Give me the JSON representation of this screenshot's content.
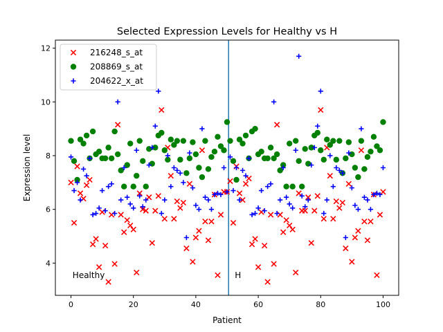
{
  "chart_data": {
    "type": "scatter",
    "title": "Selected Expression Levels for Healthy vs H",
    "xlabel": "Patient",
    "ylabel": "Expression level",
    "xlim": [
      -5,
      105
    ],
    "ylim": [
      2.8,
      12.3
    ],
    "xticks": [
      0,
      20,
      40,
      60,
      80,
      100
    ],
    "yticks": [
      4,
      6,
      8,
      10,
      12
    ],
    "legend_position": "upper-left",
    "divider_x": 50.5,
    "divider_color": "#1f77b4",
    "annotations": [
      {
        "text": "Healthy",
        "x": 0.5,
        "y": 3.55
      },
      {
        "text": "H",
        "x": 52.5,
        "y": 3.55
      }
    ],
    "series": [
      {
        "name": "216248_s_at",
        "marker": "x",
        "color": "#ff0000",
        "points": [
          [
            0,
            7.0
          ],
          [
            1,
            5.5
          ],
          [
            2,
            7.6
          ],
          [
            3,
            6.6
          ],
          [
            4,
            6.4
          ],
          [
            5,
            6.9
          ],
          [
            6,
            7.1
          ],
          [
            7,
            4.7
          ],
          [
            8,
            4.9
          ],
          [
            9,
            3.85
          ],
          [
            10,
            5.9
          ],
          [
            11,
            4.65
          ],
          [
            12,
            3.3
          ],
          [
            13,
            5.8
          ],
          [
            14,
            3.97
          ],
          [
            15,
            9.15
          ],
          [
            16,
            5.8
          ],
          [
            17,
            5.15
          ],
          [
            18,
            5.6
          ],
          [
            19,
            5.4
          ],
          [
            20,
            5.25
          ],
          [
            21,
            3.65
          ],
          [
            22,
            6.6
          ],
          [
            23,
            6.0
          ],
          [
            24,
            5.95
          ],
          [
            25,
            6.45
          ],
          [
            26,
            4.75
          ],
          [
            27,
            5.95
          ],
          [
            28,
            6.5
          ],
          [
            29,
            9.7
          ],
          [
            30,
            5.65
          ],
          [
            31,
            8.3
          ],
          [
            32,
            7.25
          ],
          [
            33,
            5.65
          ],
          [
            34,
            6.3
          ],
          [
            35,
            6.05
          ],
          [
            36,
            6.25
          ],
          [
            37,
            4.55
          ],
          [
            38,
            6.95
          ],
          [
            39,
            4.05
          ],
          [
            40,
            4.95
          ],
          [
            41,
            5.2
          ],
          [
            42,
            8.2
          ],
          [
            43,
            5.55
          ],
          [
            44,
            4.85
          ],
          [
            45,
            5.55
          ],
          [
            46,
            6.55
          ],
          [
            47,
            3.55
          ],
          [
            48,
            5.8
          ],
          [
            49,
            6.65
          ],
          [
            50,
            6.65
          ],
          [
            51,
            7.05
          ],
          [
            52,
            5.5
          ],
          [
            53,
            7.6
          ],
          [
            54,
            6.6
          ],
          [
            55,
            6.35
          ],
          [
            56,
            6.95
          ],
          [
            57,
            7.15
          ],
          [
            58,
            4.7
          ],
          [
            59,
            4.9
          ],
          [
            60,
            3.85
          ],
          [
            61,
            5.9
          ],
          [
            62,
            4.65
          ],
          [
            63,
            3.3
          ],
          [
            64,
            5.8
          ],
          [
            65,
            3.97
          ],
          [
            66,
            9.15
          ],
          [
            67,
            5.8
          ],
          [
            68,
            5.15
          ],
          [
            69,
            5.6
          ],
          [
            70,
            5.4
          ],
          [
            71,
            5.25
          ],
          [
            72,
            3.65
          ],
          [
            73,
            6.6
          ],
          [
            74,
            5.95
          ],
          [
            75,
            5.95
          ],
          [
            76,
            6.45
          ],
          [
            77,
            4.75
          ],
          [
            78,
            5.95
          ],
          [
            79,
            6.5
          ],
          [
            80,
            9.7
          ],
          [
            81,
            5.65
          ],
          [
            82,
            8.3
          ],
          [
            83,
            7.25
          ],
          [
            84,
            5.65
          ],
          [
            85,
            6.3
          ],
          [
            86,
            6.05
          ],
          [
            87,
            6.25
          ],
          [
            88,
            4.55
          ],
          [
            89,
            6.95
          ],
          [
            90,
            4.05
          ],
          [
            91,
            4.95
          ],
          [
            92,
            5.2
          ],
          [
            93,
            8.2
          ],
          [
            94,
            5.55
          ],
          [
            95,
            4.85
          ],
          [
            96,
            5.55
          ],
          [
            97,
            6.55
          ],
          [
            98,
            3.55
          ],
          [
            99,
            5.8
          ],
          [
            100,
            6.65
          ]
        ]
      },
      {
        "name": "208869_s_at",
        "marker": "circle",
        "color": "#008000",
        "points": [
          [
            0,
            8.55
          ],
          [
            1,
            7.8
          ],
          [
            2,
            7.1
          ],
          [
            3,
            8.6
          ],
          [
            4,
            8.45
          ],
          [
            5,
            8.75
          ],
          [
            6,
            7.9
          ],
          [
            7,
            8.9
          ],
          [
            8,
            8.05
          ],
          [
            9,
            8.15
          ],
          [
            10,
            7.9
          ],
          [
            11,
            7.9
          ],
          [
            12,
            8.3
          ],
          [
            13,
            7.9
          ],
          [
            14,
            8.9
          ],
          [
            15,
            8.05
          ],
          [
            16,
            7.45
          ],
          [
            17,
            6.85
          ],
          [
            18,
            7.65
          ],
          [
            19,
            8.45
          ],
          [
            20,
            6.85
          ],
          [
            21,
            7.25
          ],
          [
            22,
            8.55
          ],
          [
            23,
            7.8
          ],
          [
            24,
            6.85
          ],
          [
            25,
            8.25
          ],
          [
            26,
            7.7
          ],
          [
            27,
            8.3
          ],
          [
            28,
            8.75
          ],
          [
            29,
            8.85
          ],
          [
            30,
            8.2
          ],
          [
            31,
            7.85
          ],
          [
            32,
            8.6
          ],
          [
            33,
            8.4
          ],
          [
            34,
            8.55
          ],
          [
            35,
            7.85
          ],
          [
            36,
            8.55
          ],
          [
            37,
            7.35
          ],
          [
            38,
            7.9
          ],
          [
            39,
            8.5
          ],
          [
            40,
            8.05
          ],
          [
            41,
            7.55
          ],
          [
            42,
            7.2
          ],
          [
            43,
            8.55
          ],
          [
            44,
            7.5
          ],
          [
            45,
            7.95
          ],
          [
            46,
            8.15
          ],
          [
            47,
            8.7
          ],
          [
            48,
            8.35
          ],
          [
            49,
            8.2
          ],
          [
            50,
            9.25
          ],
          [
            51,
            8.55
          ],
          [
            52,
            7.8
          ],
          [
            53,
            7.1
          ],
          [
            54,
            8.6
          ],
          [
            55,
            8.45
          ],
          [
            56,
            8.75
          ],
          [
            57,
            7.9
          ],
          [
            58,
            8.9
          ],
          [
            59,
            9.0
          ],
          [
            60,
            8.05
          ],
          [
            61,
            8.15
          ],
          [
            62,
            7.9
          ],
          [
            63,
            7.9
          ],
          [
            64,
            8.3
          ],
          [
            65,
            7.9
          ],
          [
            66,
            8.05
          ],
          [
            67,
            7.45
          ],
          [
            68,
            7.65
          ],
          [
            69,
            6.85
          ],
          [
            70,
            8.45
          ],
          [
            71,
            6.85
          ],
          [
            72,
            8.55
          ],
          [
            73,
            7.8
          ],
          [
            74,
            6.85
          ],
          [
            75,
            8.25
          ],
          [
            76,
            7.7
          ],
          [
            77,
            8.3
          ],
          [
            78,
            8.75
          ],
          [
            79,
            8.85
          ],
          [
            80,
            8.2
          ],
          [
            81,
            7.85
          ],
          [
            82,
            8.6
          ],
          [
            83,
            8.4
          ],
          [
            84,
            8.55
          ],
          [
            85,
            7.85
          ],
          [
            86,
            8.55
          ],
          [
            87,
            7.35
          ],
          [
            88,
            7.9
          ],
          [
            89,
            8.5
          ],
          [
            90,
            8.05
          ],
          [
            91,
            7.55
          ],
          [
            92,
            7.2
          ],
          [
            93,
            8.55
          ],
          [
            94,
            7.5
          ],
          [
            95,
            7.95
          ],
          [
            96,
            8.15
          ],
          [
            97,
            8.7
          ],
          [
            98,
            8.35
          ],
          [
            99,
            8.2
          ],
          [
            100,
            9.25
          ]
        ]
      },
      {
        "name": "204622_x_at",
        "marker": "plus",
        "color": "#0000ff",
        "points": [
          [
            0,
            7.95
          ],
          [
            1,
            6.7
          ],
          [
            2,
            7.0
          ],
          [
            3,
            6.35
          ],
          [
            4,
            7.5
          ],
          [
            5,
            7.25
          ],
          [
            6,
            7.9
          ],
          [
            7,
            5.8
          ],
          [
            8,
            5.85
          ],
          [
            9,
            6.05
          ],
          [
            10,
            6.7
          ],
          [
            11,
            5.95
          ],
          [
            12,
            6.85
          ],
          [
            13,
            6.95
          ],
          [
            14,
            5.85
          ],
          [
            15,
            10.0
          ],
          [
            16,
            6.35
          ],
          [
            17,
            7.55
          ],
          [
            18,
            6.45
          ],
          [
            19,
            6.2
          ],
          [
            20,
            6.05
          ],
          [
            21,
            8.2
          ],
          [
            22,
            6.5
          ],
          [
            23,
            6.1
          ],
          [
            24,
            6.35
          ],
          [
            25,
            7.65
          ],
          [
            26,
            8.3
          ],
          [
            27,
            9.1
          ],
          [
            28,
            10.4
          ],
          [
            29,
            5.85
          ],
          [
            30,
            6.35
          ],
          [
            31,
            8.0
          ],
          [
            32,
            6.85
          ],
          [
            33,
            7.55
          ],
          [
            34,
            7.45
          ],
          [
            35,
            7.35
          ],
          [
            36,
            7.0
          ],
          [
            37,
            4.95
          ],
          [
            38,
            8.1
          ],
          [
            39,
            6.8
          ],
          [
            40,
            6.15
          ],
          [
            41,
            6.0
          ],
          [
            42,
            9.0
          ],
          [
            43,
            6.45
          ],
          [
            44,
            6.35
          ],
          [
            45,
            6.0
          ],
          [
            46,
            6.55
          ],
          [
            47,
            6.6
          ],
          [
            48,
            6.55
          ],
          [
            49,
            7.55
          ],
          [
            50,
            6.65
          ],
          [
            51,
            7.95
          ],
          [
            52,
            6.7
          ],
          [
            53,
            7.55
          ],
          [
            54,
            6.35
          ],
          [
            55,
            7.45
          ],
          [
            56,
            7.25
          ],
          [
            57,
            7.9
          ],
          [
            58,
            5.8
          ],
          [
            59,
            5.85
          ],
          [
            60,
            6.05
          ],
          [
            61,
            6.7
          ],
          [
            62,
            5.95
          ],
          [
            63,
            6.85
          ],
          [
            64,
            6.95
          ],
          [
            65,
            10.0
          ],
          [
            66,
            5.85
          ],
          [
            67,
            6.35
          ],
          [
            68,
            7.55
          ],
          [
            69,
            6.45
          ],
          [
            70,
            6.2
          ],
          [
            71,
            6.05
          ],
          [
            72,
            8.2
          ],
          [
            73,
            11.7
          ],
          [
            74,
            6.5
          ],
          [
            75,
            6.1
          ],
          [
            76,
            6.35
          ],
          [
            77,
            7.65
          ],
          [
            78,
            8.3
          ],
          [
            79,
            9.1
          ],
          [
            80,
            10.4
          ],
          [
            81,
            5.85
          ],
          [
            82,
            6.35
          ],
          [
            83,
            8.0
          ],
          [
            84,
            6.85
          ],
          [
            85,
            7.55
          ],
          [
            86,
            7.45
          ],
          [
            87,
            7.35
          ],
          [
            88,
            4.95
          ],
          [
            89,
            8.1
          ],
          [
            90,
            6.8
          ],
          [
            91,
            6.15
          ],
          [
            92,
            6.0
          ],
          [
            93,
            9.0
          ],
          [
            94,
            6.45
          ],
          [
            95,
            6.35
          ],
          [
            96,
            6.0
          ],
          [
            97,
            6.55
          ],
          [
            98,
            6.6
          ],
          [
            99,
            6.55
          ],
          [
            100,
            7.55
          ]
        ]
      }
    ]
  }
}
